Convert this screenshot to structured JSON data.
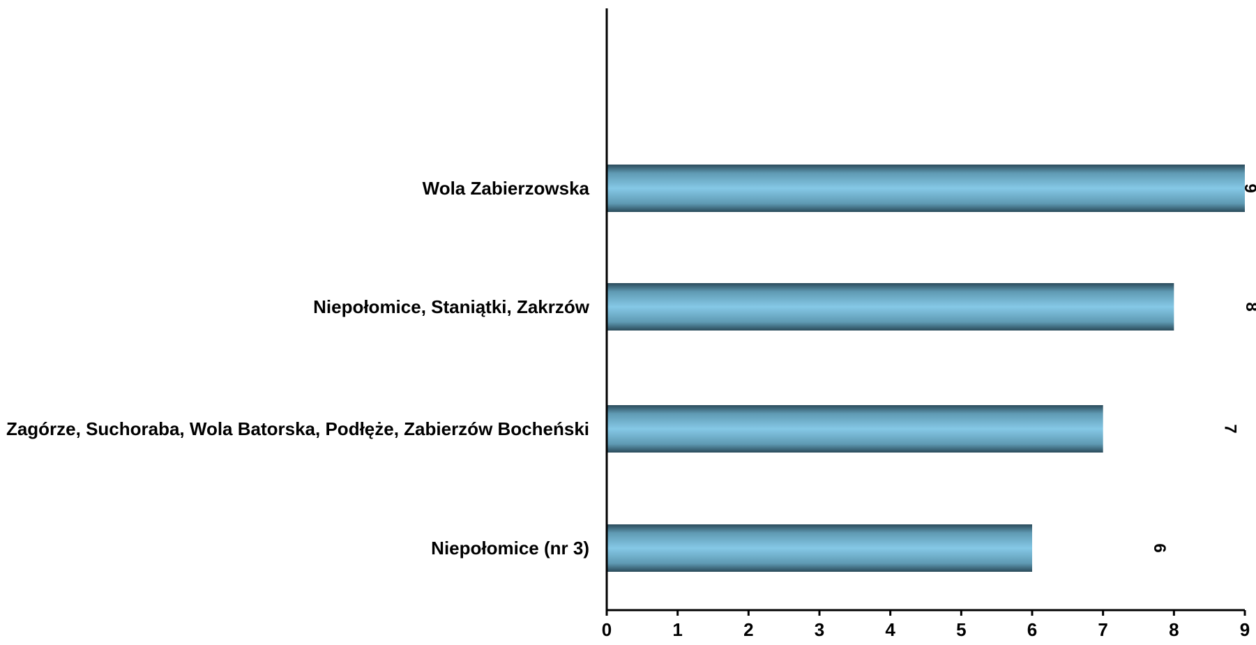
{
  "chart_data": {
    "type": "bar",
    "orientation": "horizontal",
    "categories": [
      "Wola Zabierzowska",
      "Niepołomice, Staniątki, Zakrzów",
      "Zagórze, Suchoraba, Wola Batorska, Podłęże, Zabierzów Bocheński",
      "Niepołomice (nr 3)"
    ],
    "values": [
      9,
      8,
      7,
      6
    ],
    "data_labels": [
      "9",
      "8",
      "7",
      "6"
    ],
    "xticks": [
      "0",
      "1",
      "2",
      "3",
      "4",
      "5",
      "6",
      "7",
      "8",
      "9"
    ],
    "xlim": [
      0,
      9
    ],
    "title": "",
    "xlabel": "",
    "ylabel": "",
    "grid": false,
    "legend": "none",
    "colors": {
      "bar_center": "#7fc4e3",
      "bar_edge": "#2a4a5a",
      "axis": "#000000"
    }
  }
}
